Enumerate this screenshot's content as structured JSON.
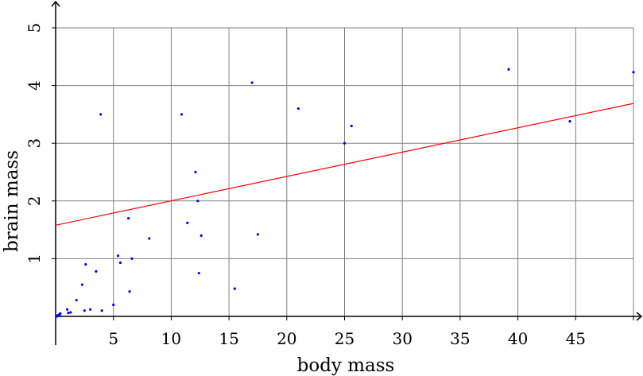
{
  "chart_data": {
    "type": "scatter",
    "title": "",
    "xlabel": "body mass",
    "ylabel": "brain mass",
    "xlim": [
      0,
      50
    ],
    "ylim": [
      0,
      5
    ],
    "xticks": [
      5,
      10,
      15,
      20,
      25,
      30,
      35,
      40,
      45
    ],
    "yticks": [
      1,
      2,
      3,
      4,
      5
    ],
    "grid": true,
    "legend": "none",
    "series": [
      {
        "type": "scatter",
        "color": "#0000ff",
        "points": [
          [
            0.1,
            0.0
          ],
          [
            0.2,
            0.02
          ],
          [
            0.3,
            0.03
          ],
          [
            0.35,
            0.01
          ],
          [
            0.4,
            0.05
          ],
          [
            1.0,
            0.12
          ],
          [
            1.1,
            0.06
          ],
          [
            1.3,
            0.07
          ],
          [
            1.8,
            0.28
          ],
          [
            2.3,
            0.55
          ],
          [
            2.5,
            0.1
          ],
          [
            2.6,
            0.9
          ],
          [
            3.0,
            0.12
          ],
          [
            3.5,
            0.78
          ],
          [
            3.9,
            3.5
          ],
          [
            4.0,
            0.1
          ],
          [
            5.0,
            0.2
          ],
          [
            5.4,
            1.05
          ],
          [
            5.6,
            0.93
          ],
          [
            6.3,
            1.7
          ],
          [
            6.4,
            0.43
          ],
          [
            6.6,
            1.0
          ],
          [
            8.1,
            1.35
          ],
          [
            10.9,
            3.5
          ],
          [
            11.4,
            1.62
          ],
          [
            12.1,
            2.5
          ],
          [
            12.3,
            2.0
          ],
          [
            12.4,
            0.75
          ],
          [
            12.6,
            1.4
          ],
          [
            15.5,
            0.48
          ],
          [
            17.0,
            4.05
          ],
          [
            17.5,
            1.42
          ],
          [
            21.0,
            3.6
          ],
          [
            25.0,
            3.0
          ],
          [
            25.6,
            3.3
          ],
          [
            39.2,
            4.28
          ],
          [
            44.5,
            3.38
          ],
          [
            50.0,
            4.23
          ]
        ]
      },
      {
        "type": "line",
        "color": "#ff0000",
        "points": [
          [
            0,
            1.58
          ],
          [
            50,
            3.69
          ]
        ]
      }
    ]
  }
}
